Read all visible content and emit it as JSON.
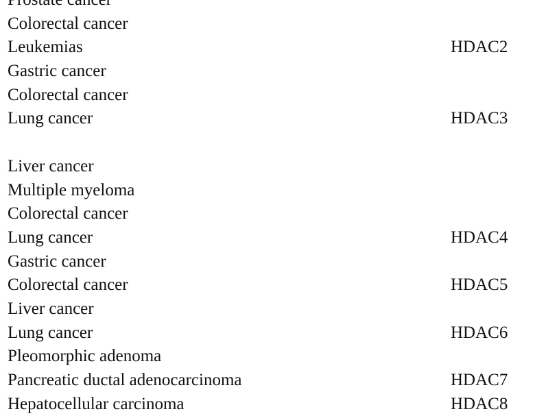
{
  "table": {
    "rows": [
      {
        "cancer": "Prostate cancer",
        "hdac": ""
      },
      {
        "cancer": "Colorectal cancer",
        "hdac": ""
      },
      {
        "cancer": "Leukemias",
        "hdac": "HDAC2"
      },
      {
        "cancer": "Gastric cancer",
        "hdac": ""
      },
      {
        "cancer": "Colorectal cancer",
        "hdac": ""
      },
      {
        "cancer": "Lung cancer",
        "hdac": "HDAC3"
      },
      {
        "cancer": "",
        "hdac": ""
      },
      {
        "cancer": "Liver cancer",
        "hdac": ""
      },
      {
        "cancer": "Multiple myeloma",
        "hdac": ""
      },
      {
        "cancer": "Colorectal cancer",
        "hdac": ""
      },
      {
        "cancer": "Lung cancer",
        "hdac": "HDAC4"
      },
      {
        "cancer": "Gastric cancer",
        "hdac": ""
      },
      {
        "cancer": "Colorectal cancer",
        "hdac": "HDAC5"
      },
      {
        "cancer": "Liver cancer",
        "hdac": ""
      },
      {
        "cancer": "Lung cancer",
        "hdac": "HDAC6"
      },
      {
        "cancer": "Pleomorphic adenoma",
        "hdac": ""
      },
      {
        "cancer": "Pancreatic ductal adenocarcinoma",
        "hdac": "HDAC7"
      },
      {
        "cancer": "Hepatocellular carcinoma",
        "hdac": "HDAC8"
      }
    ]
  }
}
